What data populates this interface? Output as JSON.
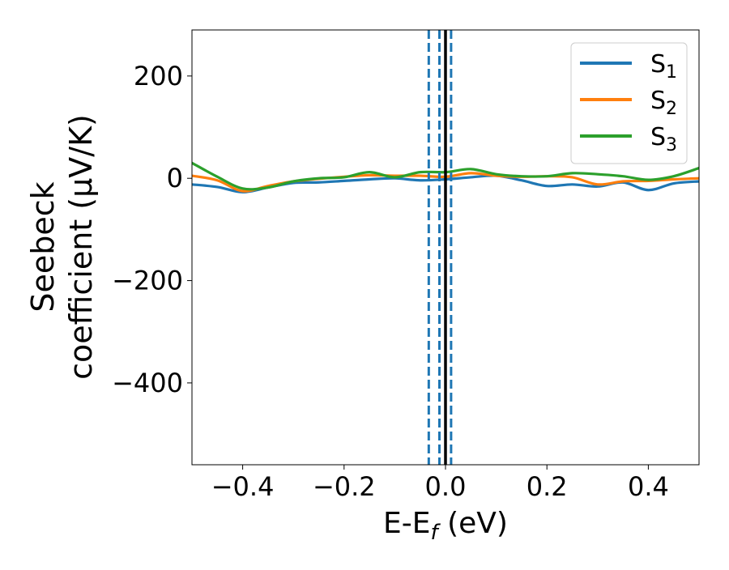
{
  "chart_data": {
    "type": "line",
    "title": "",
    "xlabel": "E-E_f (eV)",
    "xlabel_parts": {
      "main": "E-E",
      "sub": "f",
      "unit": " (eV)"
    },
    "ylabel_line1": "Seebeck",
    "ylabel_line2": "coefficient  (μV/K)",
    "xlim": [
      -0.5,
      0.5
    ],
    "ylim": [
      -560,
      290
    ],
    "xticks": [
      -0.4,
      -0.2,
      0.0,
      0.2,
      0.4
    ],
    "xtick_labels": [
      "−0.4",
      "−0.2",
      "0.0",
      "0.2",
      "0.4"
    ],
    "yticks": [
      200,
      0,
      -200,
      -400
    ],
    "ytick_labels": [
      "200",
      "0",
      "−200",
      "−400"
    ],
    "grid": false,
    "legend_position": "top-right",
    "vlines": [
      {
        "x": -0.033,
        "style": "dashed",
        "color": "#1f77b4"
      },
      {
        "x": -0.012,
        "style": "dashed",
        "color": "#1f77b4"
      },
      {
        "x": 0.011,
        "style": "dashed",
        "color": "#1f77b4"
      },
      {
        "x": 0.0,
        "style": "solid",
        "color": "#000000"
      }
    ],
    "x": [
      -0.5,
      -0.45,
      -0.4,
      -0.35,
      -0.3,
      -0.25,
      -0.2,
      -0.15,
      -0.1,
      -0.05,
      0.0,
      0.05,
      0.1,
      0.15,
      0.2,
      0.25,
      0.3,
      0.35,
      0.4,
      0.45,
      0.5
    ],
    "series": [
      {
        "name": "S",
        "sub": "1",
        "color": "#1f77b4",
        "values": [
          -12,
          -17,
          -27,
          -18,
          -9,
          -8,
          -5,
          -2,
          0,
          -4,
          -2,
          2,
          5,
          -4,
          -15,
          -12,
          -16,
          -8,
          -23,
          -10,
          -6
        ]
      },
      {
        "name": "S",
        "sub": "2",
        "color": "#ff7f0e",
        "values": [
          5,
          -4,
          -25,
          -15,
          -6,
          -1,
          3,
          6,
          5,
          5,
          3,
          10,
          5,
          3,
          4,
          2,
          -12,
          -6,
          -5,
          -2,
          0
        ]
      },
      {
        "name": "S",
        "sub": "3",
        "color": "#2ca02c",
        "values": [
          30,
          3,
          -20,
          -18,
          -6,
          0,
          2,
          12,
          2,
          12,
          12,
          18,
          8,
          4,
          4,
          10,
          8,
          4,
          -3,
          4,
          20
        ]
      }
    ]
  }
}
